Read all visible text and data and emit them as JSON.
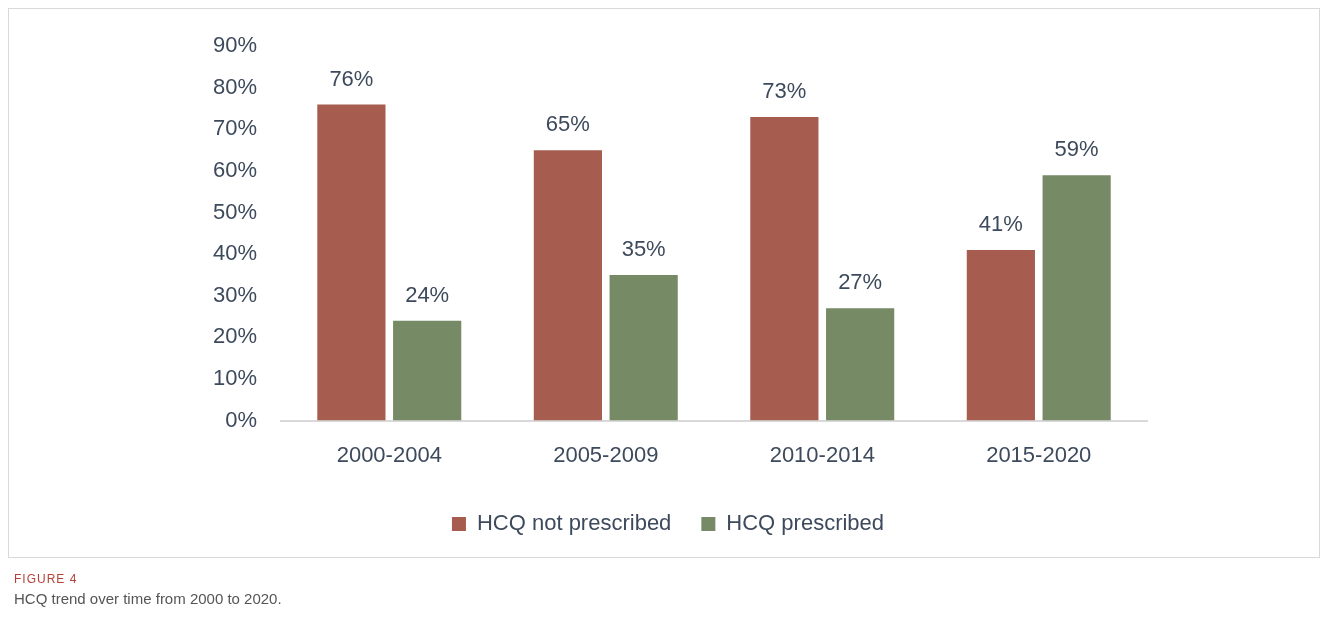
{
  "chart_data": {
    "type": "bar",
    "categories": [
      "2000-2004",
      "2005-2009",
      "2010-2014",
      "2015-2020"
    ],
    "series": [
      {
        "name": "HCQ not prescribed",
        "color": "#a65c4e",
        "values": [
          76,
          65,
          73,
          41
        ],
        "value_labels": [
          "76%",
          "65%",
          "73%",
          "41%"
        ]
      },
      {
        "name": "HCQ prescribed",
        "color": "#768a66",
        "values": [
          24,
          35,
          27,
          59
        ],
        "value_labels": [
          "24%",
          "35%",
          "27%",
          "59%"
        ]
      }
    ],
    "ylim": [
      0,
      90
    ],
    "yticks": [
      {
        "value": 0,
        "label": "0%"
      },
      {
        "value": 10,
        "label": "10%"
      },
      {
        "value": 20,
        "label": "20%"
      },
      {
        "value": 30,
        "label": "30%"
      },
      {
        "value": 40,
        "label": "40%"
      },
      {
        "value": 50,
        "label": "50%"
      },
      {
        "value": 60,
        "label": "60%"
      },
      {
        "value": 70,
        "label": "70%"
      },
      {
        "value": 80,
        "label": "80%"
      },
      {
        "value": 90,
        "label": "90%"
      }
    ],
    "grid": false,
    "legend": "bottom",
    "annotations": [
      "FIGURE 4",
      "HCQ trend over time from 2000 to 2020."
    ]
  }
}
